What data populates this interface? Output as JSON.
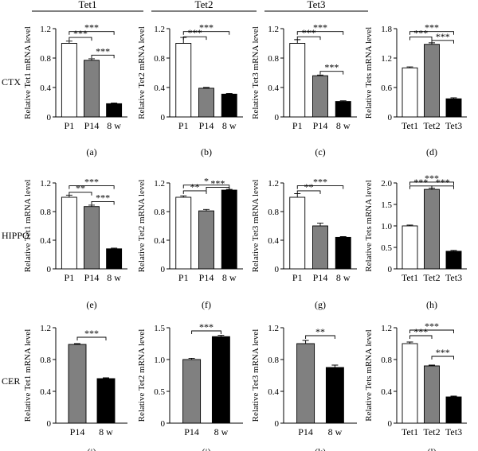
{
  "column_headers": [
    "Tet1",
    "Tet2",
    "Tet3"
  ],
  "row_labels": [
    "CTX",
    "HIPPO",
    "CER"
  ],
  "colors": {
    "P1": "#ffffff",
    "P14": "#808080",
    "8w": "#000000",
    "Tet1": "#ffffff",
    "Tet2": "#808080",
    "Tet3": "#000000"
  },
  "chart_data": [
    {
      "id": "a",
      "panel_label": "(a)",
      "type": "bar",
      "ylabel": "Relative Tet1 mRNA level",
      "categories": [
        "P1",
        "P14",
        "8 w"
      ],
      "values": [
        1.0,
        0.77,
        0.18
      ],
      "errors": [
        0.03,
        0.02,
        0.01
      ],
      "colors": [
        "#ffffff",
        "#808080",
        "#000000"
      ],
      "ylim": [
        0,
        1.2
      ],
      "yticks": [
        "0",
        "0.4",
        "0.8",
        "1.2"
      ],
      "ytick_values": [
        0,
        0.4,
        0.8,
        1.2
      ],
      "brackets": [
        {
          "from": 0,
          "to": 1,
          "label": "***",
          "level": 1.08
        },
        {
          "from": 0,
          "to": 2,
          "label": "***",
          "level": 1.16
        },
        {
          "from": 1,
          "to": 2,
          "label": "***",
          "level": 0.84
        }
      ]
    },
    {
      "id": "b",
      "panel_label": "(b)",
      "type": "bar",
      "ylabel": "Relative Tet2 mRNA level",
      "categories": [
        "P1",
        "P14",
        "8 w"
      ],
      "values": [
        1.0,
        0.39,
        0.31
      ],
      "errors": [
        0.08,
        0.01,
        0.01
      ],
      "colors": [
        "#ffffff",
        "#808080",
        "#000000"
      ],
      "ylim": [
        0,
        1.2
      ],
      "yticks": [
        "0",
        "0.4",
        "0.8",
        "1.2"
      ],
      "ytick_values": [
        0,
        0.4,
        0.8,
        1.2
      ],
      "brackets": [
        {
          "from": 0,
          "to": 1,
          "label": "***",
          "level": 1.09
        },
        {
          "from": 0,
          "to": 2,
          "label": "***",
          "level": 1.16
        }
      ]
    },
    {
      "id": "c",
      "panel_label": "(c)",
      "type": "bar",
      "ylabel": "Relative Tet3 mRNA level",
      "categories": [
        "P1",
        "P14",
        "8 w"
      ],
      "values": [
        1.0,
        0.56,
        0.21
      ],
      "errors": [
        0.05,
        0.01,
        0.01
      ],
      "colors": [
        "#ffffff",
        "#808080",
        "#000000"
      ],
      "ylim": [
        0,
        1.2
      ],
      "yticks": [
        "0",
        "0.4",
        "0.8",
        "1.2"
      ],
      "ytick_values": [
        0,
        0.4,
        0.8,
        1.2
      ],
      "brackets": [
        {
          "from": 0,
          "to": 1,
          "label": "***",
          "level": 1.09
        },
        {
          "from": 0,
          "to": 2,
          "label": "***",
          "level": 1.16
        },
        {
          "from": 1,
          "to": 2,
          "label": "***",
          "level": 0.62
        }
      ]
    },
    {
      "id": "d",
      "panel_label": "(d)",
      "type": "bar",
      "ylabel": "Relative Tets mRNA level",
      "categories": [
        "Tet1",
        "Tet2",
        "Tet3"
      ],
      "values": [
        1.0,
        1.48,
        0.37
      ],
      "errors": [
        0.02,
        0.03,
        0.02
      ],
      "colors": [
        "#ffffff",
        "#808080",
        "#000000"
      ],
      "ylim": [
        0,
        1.8
      ],
      "yticks": [
        "0",
        "0.6",
        "1.2",
        "1.8"
      ],
      "ytick_values": [
        0,
        0.6,
        1.2,
        1.8
      ],
      "brackets": [
        {
          "from": 0,
          "to": 1,
          "label": "***",
          "level": 1.63
        },
        {
          "from": 0,
          "to": 2,
          "label": "***",
          "level": 1.74
        },
        {
          "from": 1,
          "to": 2,
          "label": "***",
          "level": 1.56
        }
      ]
    },
    {
      "id": "e",
      "panel_label": "(e)",
      "type": "bar",
      "ylabel": "Relative Tet1 mRNA level",
      "categories": [
        "P1",
        "P14",
        "8 w"
      ],
      "values": [
        1.0,
        0.87,
        0.28
      ],
      "errors": [
        0.03,
        0.02,
        0.01
      ],
      "colors": [
        "#ffffff",
        "#808080",
        "#000000"
      ],
      "ylim": [
        0,
        1.2
      ],
      "yticks": [
        "0",
        "0.4",
        "0.8",
        "1.2"
      ],
      "ytick_values": [
        0,
        0.4,
        0.8,
        1.2
      ],
      "brackets": [
        {
          "from": 0,
          "to": 1,
          "label": "**",
          "level": 1.07
        },
        {
          "from": 0,
          "to": 2,
          "label": "***",
          "level": 1.16
        },
        {
          "from": 1,
          "to": 2,
          "label": "***",
          "level": 0.94
        }
      ]
    },
    {
      "id": "f",
      "panel_label": "(f)",
      "type": "bar",
      "ylabel": "Relative Tet2 mRNA level",
      "categories": [
        "P1",
        "P14",
        "8 w"
      ],
      "values": [
        1.0,
        0.81,
        1.1
      ],
      "errors": [
        0.02,
        0.02,
        0.01
      ],
      "colors": [
        "#ffffff",
        "#808080",
        "#000000"
      ],
      "ylim": [
        0,
        1.2
      ],
      "yticks": [
        "0",
        "0.4",
        "0.8",
        "1.2"
      ],
      "ytick_values": [
        0,
        0.4,
        0.8,
        1.2
      ],
      "brackets": [
        {
          "from": 0,
          "to": 1,
          "label": "**",
          "level": 1.09
        },
        {
          "from": 0,
          "to": 2,
          "label": "*",
          "level": 1.17
        },
        {
          "from": 1,
          "to": 2,
          "label": "***",
          "level": 1.14
        }
      ]
    },
    {
      "id": "g",
      "panel_label": "(g)",
      "type": "bar",
      "ylabel": "Relative Tet3 mRNA level",
      "categories": [
        "P1",
        "P14",
        "8 w"
      ],
      "values": [
        1.0,
        0.6,
        0.44
      ],
      "errors": [
        0.05,
        0.04,
        0.01
      ],
      "colors": [
        "#ffffff",
        "#808080",
        "#000000"
      ],
      "ylim": [
        0,
        1.2
      ],
      "yticks": [
        "0",
        "0.4",
        "0.8",
        "1.2"
      ],
      "ytick_values": [
        0,
        0.4,
        0.8,
        1.2
      ],
      "brackets": [
        {
          "from": 0,
          "to": 1,
          "label": "**",
          "level": 1.09
        },
        {
          "from": 0,
          "to": 2,
          "label": "***",
          "level": 1.16
        }
      ]
    },
    {
      "id": "h",
      "panel_label": "(h)",
      "type": "bar",
      "ylabel": "Relative Tets mRNA level",
      "categories": [
        "Tet1",
        "Tet2",
        "Tet3"
      ],
      "values": [
        1.0,
        1.85,
        0.41
      ],
      "errors": [
        0.02,
        0.03,
        0.02
      ],
      "colors": [
        "#ffffff",
        "#808080",
        "#000000"
      ],
      "ylim": [
        0,
        2.0
      ],
      "yticks": [
        "0",
        "0.5",
        "1.0",
        "1.5",
        "2.0"
      ],
      "ytick_values": [
        0,
        0.5,
        1.0,
        1.5,
        2.0
      ],
      "brackets": [
        {
          "from": 0,
          "to": 1,
          "label": "***",
          "level": 1.93
        },
        {
          "from": 0,
          "to": 2,
          "label": "***",
          "level": 2.02
        },
        {
          "from": 1,
          "to": 2,
          "label": "***",
          "level": 1.93
        }
      ]
    },
    {
      "id": "i",
      "panel_label": "(i)",
      "type": "bar",
      "ylabel": "Relative Tet1 mRNA level",
      "categories": [
        "P14",
        "8 w"
      ],
      "values": [
        0.99,
        0.56
      ],
      "errors": [
        0.01,
        0.01
      ],
      "colors": [
        "#808080",
        "#000000"
      ],
      "ylim": [
        0,
        1.2
      ],
      "yticks": [
        "0",
        "0.4",
        "0.8",
        "1.2"
      ],
      "ytick_values": [
        0,
        0.4,
        0.8,
        1.2
      ],
      "brackets": [
        {
          "from": 0,
          "to": 1,
          "label": "***",
          "level": 1.08
        }
      ]
    },
    {
      "id": "j",
      "panel_label": "(j)",
      "type": "bar",
      "ylabel": "Relative Tet2 mRNA level",
      "categories": [
        "P14",
        "8 w"
      ],
      "values": [
        1.0,
        1.36
      ],
      "errors": [
        0.02,
        0.02
      ],
      "colors": [
        "#808080",
        "#000000"
      ],
      "ylim": [
        0,
        1.5
      ],
      "yticks": [
        "0",
        "0.5",
        "1.0",
        "1.5"
      ],
      "ytick_values": [
        0,
        0.5,
        1.0,
        1.5
      ],
      "brackets": [
        {
          "from": 0,
          "to": 1,
          "label": "***",
          "level": 1.45
        }
      ]
    },
    {
      "id": "k",
      "panel_label": "(k)",
      "type": "bar",
      "ylabel": "Relative Tet3 mRNA level",
      "categories": [
        "P14",
        "8 w"
      ],
      "values": [
        1.0,
        0.7
      ],
      "errors": [
        0.04,
        0.03
      ],
      "colors": [
        "#808080",
        "#000000"
      ],
      "ylim": [
        0,
        1.2
      ],
      "yticks": [
        "0",
        "0.4",
        "0.8",
        "1.2"
      ],
      "ytick_values": [
        0,
        0.4,
        0.8,
        1.2
      ],
      "brackets": [
        {
          "from": 0,
          "to": 1,
          "label": "**",
          "level": 1.1
        }
      ]
    },
    {
      "id": "l",
      "panel_label": "(l)",
      "type": "bar",
      "ylabel": "Relative Tets mRNA level",
      "categories": [
        "Tet1",
        "Tet2",
        "Tet3"
      ],
      "values": [
        1.0,
        0.72,
        0.33
      ],
      "errors": [
        0.02,
        0.01,
        0.01
      ],
      "colors": [
        "#ffffff",
        "#808080",
        "#000000"
      ],
      "ylim": [
        0,
        1.2
      ],
      "yticks": [
        "0",
        "0.4",
        "0.8",
        "1.2"
      ],
      "ytick_values": [
        0,
        0.4,
        0.8,
        1.2
      ],
      "brackets": [
        {
          "from": 0,
          "to": 1,
          "label": "***",
          "level": 1.1
        },
        {
          "from": 0,
          "to": 2,
          "label": "***",
          "level": 1.17
        },
        {
          "from": 1,
          "to": 2,
          "label": "***",
          "level": 0.84
        }
      ]
    }
  ]
}
